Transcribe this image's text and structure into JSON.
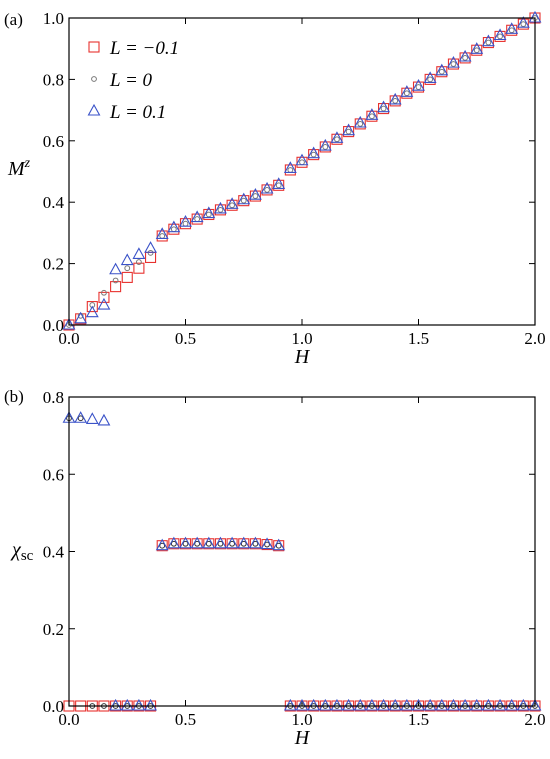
{
  "chart_data": [
    {
      "type": "scatter",
      "panel_label": "(a)",
      "xlabel": "H",
      "ylabel": "M",
      "ylabel_sup": "z",
      "xlim": [
        0,
        2.0
      ],
      "ylim": [
        0,
        1.0
      ],
      "x_ticks": [
        "0.0",
        "0.5",
        "1.0",
        "1.5",
        "2.0"
      ],
      "y_ticks": [
        "0.0",
        "0.2",
        "0.4",
        "0.6",
        "0.8",
        "1.0"
      ],
      "legend_position": "top-left",
      "series": [
        {
          "name": "L = −0.1",
          "marker": "square",
          "color": "#e8322f",
          "x": [
            0.0,
            0.05,
            0.1,
            0.15,
            0.2,
            0.25,
            0.3,
            0.35,
            0.4,
            0.45,
            0.5,
            0.55,
            0.6,
            0.65,
            0.7,
            0.75,
            0.8,
            0.85,
            0.9,
            0.95,
            1.0,
            1.05,
            1.1,
            1.15,
            1.2,
            1.25,
            1.3,
            1.35,
            1.4,
            1.45,
            1.5,
            1.55,
            1.6,
            1.65,
            1.7,
            1.75,
            1.8,
            1.85,
            1.9,
            1.95,
            2.0
          ],
          "y": [
            0.0,
            0.02,
            0.06,
            0.09,
            0.125,
            0.155,
            0.185,
            0.22,
            0.29,
            0.312,
            0.33,
            0.345,
            0.36,
            0.375,
            0.39,
            0.405,
            0.42,
            0.44,
            0.455,
            0.505,
            0.53,
            0.555,
            0.58,
            0.605,
            0.63,
            0.655,
            0.68,
            0.705,
            0.73,
            0.755,
            0.775,
            0.8,
            0.825,
            0.85,
            0.87,
            0.895,
            0.92,
            0.94,
            0.96,
            0.98,
            1.0
          ]
        },
        {
          "name": "L = 0",
          "marker": "circle",
          "color": "#777777",
          "x": [
            0.0,
            0.05,
            0.1,
            0.15,
            0.2,
            0.25,
            0.3,
            0.35,
            0.4,
            0.45,
            0.5,
            0.55,
            0.6,
            0.65,
            0.7,
            0.75,
            0.8,
            0.85,
            0.9,
            0.95,
            1.0,
            1.05,
            1.1,
            1.15,
            1.2,
            1.25,
            1.3,
            1.35,
            1.4,
            1.45,
            1.5,
            1.55,
            1.6,
            1.65,
            1.7,
            1.75,
            1.8,
            1.85,
            1.9,
            1.95,
            2.0
          ],
          "y": [
            0.0,
            0.03,
            0.065,
            0.105,
            0.145,
            0.185,
            0.205,
            0.235,
            0.29,
            0.312,
            0.33,
            0.345,
            0.36,
            0.375,
            0.39,
            0.405,
            0.42,
            0.44,
            0.455,
            0.505,
            0.53,
            0.555,
            0.58,
            0.605,
            0.63,
            0.655,
            0.68,
            0.705,
            0.73,
            0.755,
            0.775,
            0.8,
            0.825,
            0.85,
            0.87,
            0.895,
            0.92,
            0.94,
            0.96,
            0.98,
            1.0
          ]
        },
        {
          "name": "L = 0.1",
          "marker": "triangle",
          "color": "#3a52c8",
          "x": [
            0.0,
            0.05,
            0.1,
            0.15,
            0.2,
            0.25,
            0.3,
            0.35,
            0.4,
            0.45,
            0.5,
            0.55,
            0.6,
            0.65,
            0.7,
            0.75,
            0.8,
            0.85,
            0.9,
            0.95,
            1.0,
            1.05,
            1.1,
            1.15,
            1.2,
            1.25,
            1.3,
            1.35,
            1.4,
            1.45,
            1.5,
            1.55,
            1.6,
            1.65,
            1.7,
            1.75,
            1.8,
            1.85,
            1.9,
            1.95,
            2.0
          ],
          "y": [
            0.0,
            0.02,
            0.04,
            0.065,
            0.18,
            0.21,
            0.23,
            0.25,
            0.295,
            0.317,
            0.335,
            0.35,
            0.363,
            0.378,
            0.393,
            0.408,
            0.423,
            0.443,
            0.458,
            0.51,
            0.535,
            0.558,
            0.583,
            0.608,
            0.633,
            0.658,
            0.683,
            0.708,
            0.733,
            0.758,
            0.778,
            0.803,
            0.828,
            0.853,
            0.873,
            0.898,
            0.923,
            0.943,
            0.963,
            0.983,
            1.0
          ]
        }
      ]
    },
    {
      "type": "scatter",
      "panel_label": "(b)",
      "xlabel": "H",
      "ylabel": "χ",
      "ylabel_sub": "sc",
      "xlim": [
        0,
        2.0
      ],
      "ylim": [
        0,
        0.8
      ],
      "x_ticks": [
        "0.0",
        "0.5",
        "1.0",
        "1.5",
        "2.0"
      ],
      "y_ticks": [
        "0.0",
        "0.2",
        "0.4",
        "0.6",
        "0.8"
      ],
      "series": [
        {
          "name": "L = −0.1",
          "marker": "square",
          "color": "#e8322f",
          "x": [
            0.0,
            0.05,
            0.1,
            0.15,
            0.2,
            0.25,
            0.3,
            0.35,
            0.4,
            0.45,
            0.5,
            0.55,
            0.6,
            0.65,
            0.7,
            0.75,
            0.8,
            0.85,
            0.9,
            0.95,
            1.0,
            1.05,
            1.1,
            1.15,
            1.2,
            1.25,
            1.3,
            1.35,
            1.4,
            1.45,
            1.5,
            1.55,
            1.6,
            1.65,
            1.7,
            1.75,
            1.8,
            1.85,
            1.9,
            1.95,
            2.0
          ],
          "y": [
            0.0,
            0.0,
            0.0,
            0.0,
            0.0,
            0.0,
            0.0,
            0.0,
            0.415,
            0.42,
            0.42,
            0.42,
            0.42,
            0.42,
            0.42,
            0.42,
            0.42,
            0.418,
            0.415,
            0.0,
            0.0,
            0.0,
            0.0,
            0.0,
            0.0,
            0.0,
            0.0,
            0.0,
            0.0,
            0.0,
            0.0,
            0.0,
            0.0,
            0.0,
            0.0,
            0.0,
            0.0,
            0.0,
            0.0,
            0.0,
            0.0
          ]
        },
        {
          "name": "L = 0",
          "marker": "circle",
          "color": "#333333",
          "x": [
            0.0,
            0.05,
            0.1,
            0.15,
            0.2,
            0.25,
            0.3,
            0.35,
            0.4,
            0.45,
            0.5,
            0.55,
            0.6,
            0.65,
            0.7,
            0.75,
            0.8,
            0.85,
            0.9,
            0.95,
            1.0,
            1.05,
            1.1,
            1.15,
            1.2,
            1.25,
            1.3,
            1.35,
            1.4,
            1.45,
            1.5,
            1.55,
            1.6,
            1.65,
            1.7,
            1.75,
            1.8,
            1.85,
            1.9,
            1.95,
            2.0
          ],
          "y": [
            0.745,
            0.745,
            0.0,
            0.0,
            0.0,
            0.0,
            0.0,
            0.0,
            0.415,
            0.42,
            0.42,
            0.42,
            0.42,
            0.42,
            0.42,
            0.42,
            0.42,
            0.418,
            0.415,
            0.0,
            0.0,
            0.0,
            0.0,
            0.0,
            0.0,
            0.0,
            0.0,
            0.0,
            0.0,
            0.0,
            0.0,
            0.0,
            0.0,
            0.0,
            0.0,
            0.0,
            0.0,
            0.0,
            0.0,
            0.0,
            0.0
          ]
        },
        {
          "name": "L = 0.1",
          "marker": "triangle",
          "color": "#3a52c8",
          "x": [
            0.0,
            0.05,
            0.1,
            0.15,
            0.2,
            0.25,
            0.3,
            0.35,
            0.4,
            0.45,
            0.5,
            0.55,
            0.6,
            0.65,
            0.7,
            0.75,
            0.8,
            0.85,
            0.9,
            0.95,
            1.0,
            1.05,
            1.1,
            1.15,
            1.2,
            1.25,
            1.3,
            1.35,
            1.4,
            1.45,
            1.5,
            1.55,
            1.6,
            1.65,
            1.7,
            1.75,
            1.8,
            1.85,
            1.9,
            1.95,
            2.0
          ],
          "y": [
            0.745,
            0.745,
            0.742,
            0.738,
            0.0,
            0.0,
            0.0,
            0.0,
            0.415,
            0.42,
            0.42,
            0.42,
            0.42,
            0.42,
            0.42,
            0.42,
            0.42,
            0.418,
            0.415,
            0.0,
            0.0,
            0.0,
            0.0,
            0.0,
            0.0,
            0.0,
            0.0,
            0.0,
            0.0,
            0.0,
            0.0,
            0.0,
            0.0,
            0.0,
            0.0,
            0.0,
            0.0,
            0.0,
            0.0,
            0.0,
            0.0
          ]
        }
      ]
    }
  ]
}
